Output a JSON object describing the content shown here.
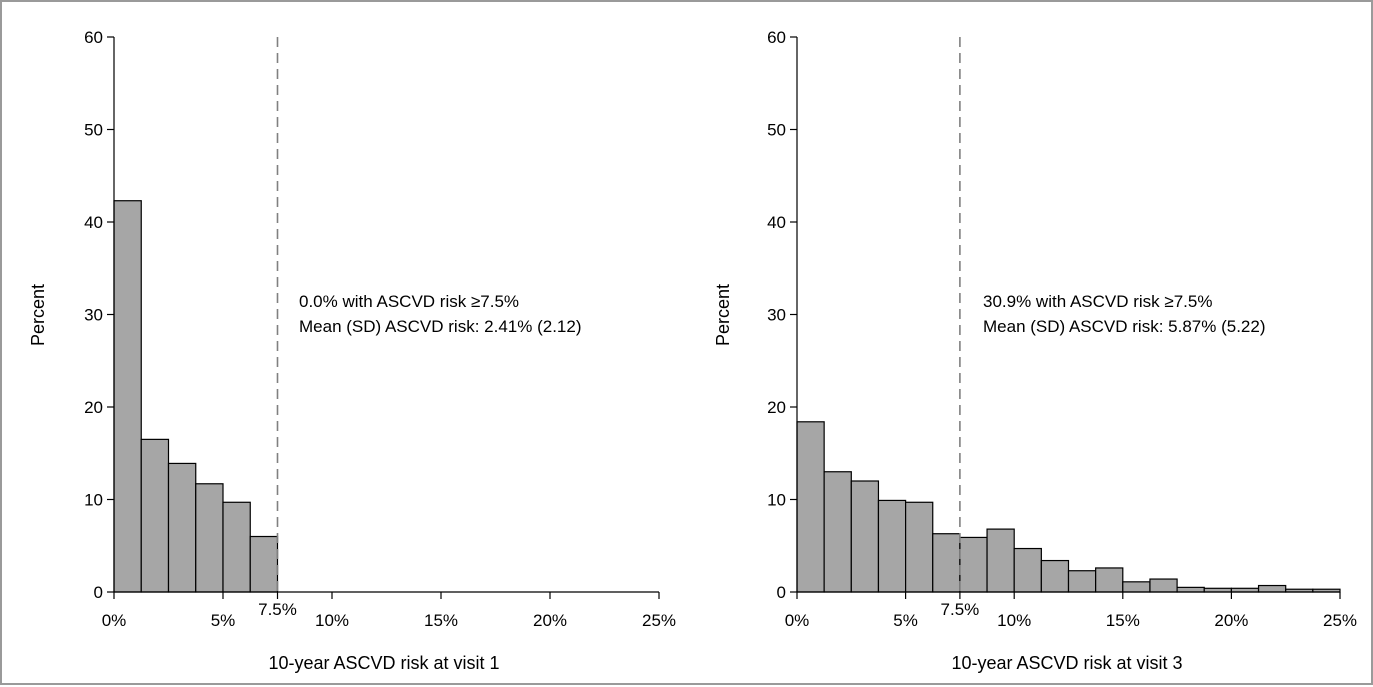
{
  "colors": {
    "bar_fill": "#a6a6a6",
    "bar_stroke": "#000000",
    "axis": "#000000",
    "threshold": "#808080",
    "frame": "#9a9a9a"
  },
  "chart_data": [
    {
      "type": "bar",
      "subtype": "histogram",
      "xlabel": "10-year ASCVD risk at visit 1",
      "ylabel": "Percent",
      "xlim": [
        0,
        25
      ],
      "ylim": [
        0,
        60
      ],
      "y_ticks": [
        0,
        10,
        20,
        30,
        40,
        50,
        60
      ],
      "y_tick_labels": [
        "0",
        "10",
        "20",
        "30",
        "40",
        "50",
        "60"
      ],
      "x_ticks": [
        0,
        5,
        10,
        15,
        20,
        25
      ],
      "x_tick_labels": [
        "0%",
        "5%",
        "10%",
        "15%",
        "20%",
        "25%"
      ],
      "threshold": {
        "value": 7.5,
        "label": "7.5%",
        "style": "dashed"
      },
      "bin_width": 1.25,
      "bin_starts": [
        0,
        1.25,
        2.5,
        3.75,
        5,
        6.25
      ],
      "values": [
        42.3,
        16.5,
        13.9,
        11.7,
        9.7,
        6.0
      ],
      "annotations": [
        "0.0% with ASCVD risk ≥7.5%",
        "Mean (SD) ASCVD risk: 2.41% (2.12)"
      ],
      "grid": false,
      "legend": "none"
    },
    {
      "type": "bar",
      "subtype": "histogram",
      "xlabel": "10-year ASCVD risk at visit 3",
      "ylabel": "Percent",
      "xlim": [
        0,
        25
      ],
      "ylim": [
        0,
        60
      ],
      "y_ticks": [
        0,
        10,
        20,
        30,
        40,
        50,
        60
      ],
      "y_tick_labels": [
        "0",
        "10",
        "20",
        "30",
        "40",
        "50",
        "60"
      ],
      "x_ticks": [
        0,
        5,
        10,
        15,
        20,
        25
      ],
      "x_tick_labels": [
        "0%",
        "5%",
        "10%",
        "15%",
        "20%",
        "25%"
      ],
      "threshold": {
        "value": 7.5,
        "label": "7.5%",
        "style": "dashed"
      },
      "bin_width": 1.25,
      "bin_starts": [
        0,
        1.25,
        2.5,
        3.75,
        5,
        6.25,
        7.5,
        8.75,
        10,
        11.25,
        12.5,
        13.75,
        15,
        16.25,
        17.5,
        18.75,
        20,
        21.25,
        22.5,
        23.75
      ],
      "values": [
        18.4,
        13.0,
        12.0,
        9.9,
        9.7,
        6.3,
        5.9,
        6.8,
        4.7,
        3.4,
        2.3,
        2.6,
        1.1,
        1.4,
        0.5,
        0.4,
        0.4,
        0.7,
        0.3,
        0.3
      ],
      "annotations": [
        "30.9% with ASCVD risk ≥7.5%",
        "Mean (SD) ASCVD risk: 5.87% (5.22)"
      ],
      "grid": false,
      "legend": "none"
    }
  ]
}
